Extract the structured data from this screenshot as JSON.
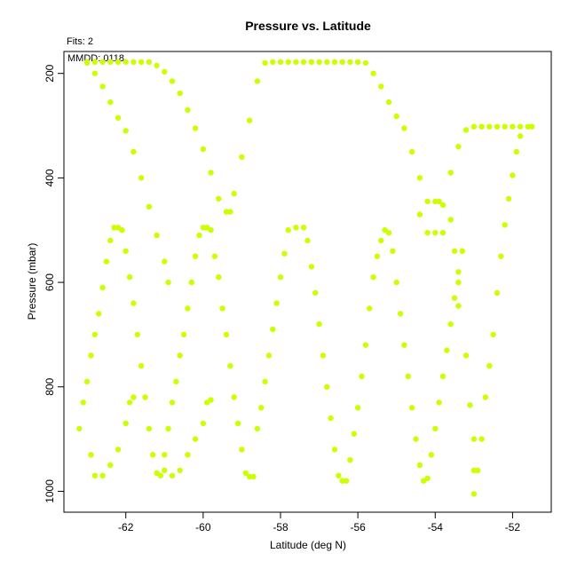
{
  "chart_data": {
    "type": "scatter",
    "title": "Pressure vs. Latitude",
    "subtitle_fits": "Fits: 2",
    "annotation": "MMDD: 0118",
    "xlabel": "Latitude (deg N)",
    "ylabel": "Pressure (mbar)",
    "xlim": [
      -63.6,
      -51.0
    ],
    "ylim": [
      1040,
      158
    ],
    "y_reversed": true,
    "xticks": [
      -62,
      -60,
      -58,
      -56,
      -54,
      -52
    ],
    "yticks": [
      200,
      400,
      600,
      800,
      1000
    ],
    "grid": false,
    "marker_color": "#ccff00",
    "series": [
      {
        "points": [
          [
            -63.0,
            178
          ],
          [
            -62.8,
            178
          ],
          [
            -62.6,
            178
          ],
          [
            -62.4,
            178
          ],
          [
            -62.2,
            178
          ],
          [
            -62.0,
            178
          ],
          [
            -61.8,
            178
          ],
          [
            -61.6,
            178
          ],
          [
            -61.4,
            178
          ],
          [
            -61.2,
            185
          ],
          [
            -61.0,
            197
          ],
          [
            -60.8,
            215
          ],
          [
            -60.6,
            238
          ],
          [
            -60.4,
            270
          ],
          [
            -60.2,
            305
          ],
          [
            -60.0,
            345
          ],
          [
            -59.8,
            390
          ],
          [
            -59.6,
            440
          ],
          [
            -59.4,
            465
          ],
          [
            -59.3,
            465
          ],
          [
            -59.2,
            430
          ],
          [
            -59.0,
            360
          ],
          [
            -58.8,
            290
          ],
          [
            -58.6,
            215
          ],
          [
            -58.4,
            180
          ],
          [
            -58.2,
            178
          ],
          [
            -58.0,
            178
          ],
          [
            -57.8,
            178
          ],
          [
            -57.6,
            178
          ],
          [
            -57.4,
            178
          ],
          [
            -57.2,
            178
          ],
          [
            -57.0,
            178
          ],
          [
            -56.8,
            178
          ],
          [
            -56.6,
            178
          ],
          [
            -56.4,
            178
          ],
          [
            -56.2,
            178
          ],
          [
            -56.0,
            178
          ],
          [
            -55.8,
            180
          ],
          [
            -55.6,
            200
          ],
          [
            -55.4,
            225
          ],
          [
            -55.2,
            255
          ],
          [
            -55.0,
            282
          ],
          [
            -54.8,
            305
          ],
          [
            -54.6,
            350
          ],
          [
            -54.4,
            400
          ],
          [
            -54.2,
            445
          ],
          [
            -54.0,
            445
          ],
          [
            -53.9,
            445
          ],
          [
            -53.8,
            452
          ],
          [
            -53.6,
            390
          ],
          [
            -53.4,
            340
          ],
          [
            -53.2,
            308
          ],
          [
            -53.0,
            302
          ],
          [
            -52.8,
            302
          ],
          [
            -52.6,
            302
          ],
          [
            -52.4,
            302
          ],
          [
            -52.2,
            302
          ],
          [
            -52.0,
            302
          ],
          [
            -51.8,
            302
          ],
          [
            -51.6,
            302
          ],
          [
            -51.5,
            302
          ],
          [
            -63.0,
            180
          ],
          [
            -62.8,
            200
          ],
          [
            -62.6,
            225
          ],
          [
            -62.4,
            255
          ],
          [
            -62.2,
            285
          ],
          [
            -62.0,
            310
          ],
          [
            -61.8,
            350
          ],
          [
            -61.6,
            400
          ],
          [
            -61.4,
            455
          ],
          [
            -61.2,
            510
          ],
          [
            -61.0,
            560
          ],
          [
            -60.9,
            600
          ],
          [
            -54.4,
            470
          ],
          [
            -54.2,
            505
          ],
          [
            -54.0,
            505
          ],
          [
            -53.8,
            505
          ],
          [
            -53.4,
            645
          ],
          [
            -53.2,
            740
          ],
          [
            -53.1,
            835
          ],
          [
            -53.0,
            900
          ],
          [
            -53.0,
            960
          ],
          [
            -53.0,
            1005
          ],
          [
            -52.9,
            960
          ],
          [
            -52.8,
            900
          ],
          [
            -52.7,
            820
          ],
          [
            -52.6,
            760
          ],
          [
            -52.5,
            700
          ],
          [
            -52.4,
            620
          ],
          [
            -52.3,
            550
          ],
          [
            -52.2,
            490
          ],
          [
            -52.1,
            440
          ],
          [
            -52.0,
            395
          ],
          [
            -51.9,
            350
          ],
          [
            -51.8,
            320
          ],
          [
            -53.6,
            480
          ],
          [
            -53.5,
            540
          ],
          [
            -53.4,
            600
          ],
          [
            -63.2,
            880
          ],
          [
            -63.1,
            830
          ],
          [
            -63.0,
            790
          ],
          [
            -62.9,
            740
          ],
          [
            -62.8,
            700
          ],
          [
            -62.7,
            660
          ],
          [
            -62.6,
            610
          ],
          [
            -62.5,
            560
          ],
          [
            -62.4,
            520
          ],
          [
            -62.3,
            495
          ],
          [
            -62.2,
            495
          ],
          [
            -62.1,
            500
          ],
          [
            -62.0,
            540
          ],
          [
            -61.9,
            590
          ],
          [
            -61.8,
            640
          ],
          [
            -61.7,
            700
          ],
          [
            -61.6,
            760
          ],
          [
            -61.5,
            820
          ],
          [
            -61.4,
            880
          ],
          [
            -61.3,
            930
          ],
          [
            -61.2,
            965
          ],
          [
            -61.1,
            970
          ],
          [
            -61.0,
            960
          ],
          [
            -62.9,
            930
          ],
          [
            -62.8,
            970
          ],
          [
            -62.6,
            970
          ],
          [
            -62.4,
            950
          ],
          [
            -62.2,
            920
          ],
          [
            -62.0,
            870
          ],
          [
            -61.9,
            830
          ],
          [
            -61.8,
            820
          ],
          [
            -61.0,
            930
          ],
          [
            -60.9,
            880
          ],
          [
            -60.8,
            830
          ],
          [
            -60.7,
            790
          ],
          [
            -60.6,
            740
          ],
          [
            -60.5,
            700
          ],
          [
            -60.4,
            650
          ],
          [
            -60.3,
            600
          ],
          [
            -60.2,
            550
          ],
          [
            -60.1,
            510
          ],
          [
            -60.0,
            495
          ],
          [
            -59.9,
            495
          ],
          [
            -59.8,
            500
          ],
          [
            -59.7,
            550
          ],
          [
            -59.6,
            590
          ],
          [
            -59.5,
            650
          ],
          [
            -59.4,
            700
          ],
          [
            -59.3,
            760
          ],
          [
            -59.2,
            820
          ],
          [
            -59.1,
            870
          ],
          [
            -59.0,
            920
          ],
          [
            -58.9,
            965
          ],
          [
            -58.8,
            972
          ],
          [
            -58.7,
            972
          ],
          [
            -60.8,
            970
          ],
          [
            -60.6,
            960
          ],
          [
            -60.4,
            930
          ],
          [
            -60.2,
            900
          ],
          [
            -60.0,
            870
          ],
          [
            -59.9,
            830
          ],
          [
            -59.8,
            825
          ],
          [
            -58.6,
            880
          ],
          [
            -58.5,
            840
          ],
          [
            -58.4,
            790
          ],
          [
            -58.3,
            740
          ],
          [
            -58.2,
            690
          ],
          [
            -58.1,
            640
          ],
          [
            -58.0,
            590
          ],
          [
            -57.9,
            545
          ],
          [
            -57.8,
            500
          ],
          [
            -57.6,
            495
          ],
          [
            -57.4,
            495
          ],
          [
            -57.3,
            520
          ],
          [
            -57.2,
            570
          ],
          [
            -57.1,
            620
          ],
          [
            -57.0,
            680
          ],
          [
            -56.9,
            740
          ],
          [
            -56.8,
            800
          ],
          [
            -56.7,
            860
          ],
          [
            -56.6,
            920
          ],
          [
            -56.5,
            970
          ],
          [
            -56.4,
            980
          ],
          [
            -56.3,
            980
          ],
          [
            -56.2,
            940
          ],
          [
            -56.1,
            890
          ],
          [
            -56.0,
            840
          ],
          [
            -55.9,
            780
          ],
          [
            -55.8,
            720
          ],
          [
            -55.7,
            650
          ],
          [
            -55.6,
            590
          ],
          [
            -55.5,
            550
          ],
          [
            -55.4,
            520
          ],
          [
            -55.3,
            500
          ],
          [
            -55.2,
            505
          ],
          [
            -55.1,
            540
          ],
          [
            -55.0,
            600
          ],
          [
            -54.9,
            660
          ],
          [
            -54.8,
            720
          ],
          [
            -54.7,
            780
          ],
          [
            -54.6,
            840
          ],
          [
            -54.5,
            900
          ],
          [
            -54.4,
            950
          ],
          [
            -54.3,
            980
          ],
          [
            -54.2,
            975
          ],
          [
            -54.1,
            930
          ],
          [
            -54.0,
            880
          ],
          [
            -53.9,
            830
          ],
          [
            -53.8,
            780
          ],
          [
            -53.7,
            730
          ],
          [
            -53.6,
            680
          ],
          [
            -53.5,
            630
          ],
          [
            -53.4,
            580
          ],
          [
            -53.3,
            540
          ]
        ]
      }
    ]
  }
}
